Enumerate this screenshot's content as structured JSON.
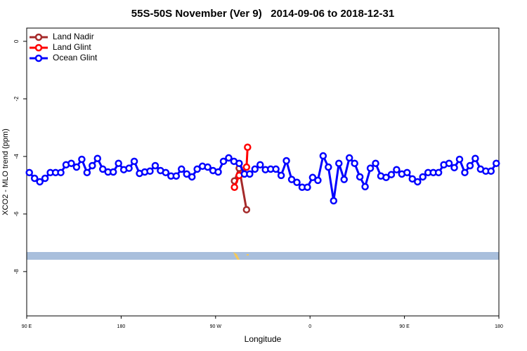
{
  "chart_data": {
    "type": "line",
    "title": "55S-50S November (Ver 9)   2014-09-06 to 2018-12-31",
    "x_label": "Longitude",
    "y_label": "XCO2 - MLO trend (ppm)",
    "xlim": [
      90,
      540
    ],
    "ylim": [
      -9.54,
      0.46
    ],
    "xticks": [
      {
        "value": 90,
        "label": "90 E"
      },
      {
        "value": 180,
        "label": "180"
      },
      {
        "value": 270,
        "label": "90 W"
      },
      {
        "value": 360,
        "label": "0"
      },
      {
        "value": 450,
        "label": "90 E"
      },
      {
        "value": 540,
        "label": "180"
      }
    ],
    "yticks": [
      0,
      -2,
      -4,
      -6,
      -8
    ],
    "legend": "top-left",
    "series": [
      {
        "name": "Land Nadir",
        "color": "#a52a2a",
        "x": [
          288,
          292.5,
          299.5
        ],
        "values": [
          -4.85,
          -4.41,
          -5.85
        ]
      },
      {
        "name": "Land Glint",
        "color": "#ff0000",
        "x": [
          288,
          292.5,
          299.5,
          300.5
        ],
        "values": [
          -5.07,
          -4.66,
          -4.37,
          -3.68
        ]
      },
      {
        "name": "Ocean Glint",
        "color": "#0000ff",
        "x": [
          92.5,
          97.5,
          102.5,
          107.5,
          112.5,
          117.5,
          122.5,
          127.5,
          132.5,
          137.5,
          142.5,
          147.5,
          152.5,
          157.5,
          162.5,
          167.5,
          172.5,
          177.5,
          182.5,
          187.5,
          192.5,
          197.5,
          202.5,
          207.5,
          212.5,
          217.5,
          222.5,
          227.5,
          232.5,
          237.5,
          242.5,
          247.5,
          252.5,
          257.5,
          262.5,
          267.5,
          272.5,
          277.5,
          282.5,
          287.5,
          292.5,
          297.5,
          302.5,
          307.5,
          312.5,
          317.5,
          322.5,
          327.5,
          332.5,
          337.5,
          342.5,
          347.5,
          352.5,
          357.5,
          362.5,
          367.5,
          372.5,
          377.5,
          382.5,
          387.5,
          392.5,
          397.5,
          402.5,
          407.5,
          412.5,
          417.5,
          422.5,
          427.5,
          432.5,
          437.5,
          442.5,
          447.5,
          452.5,
          457.5,
          462.5,
          467.5,
          472.5,
          477.5,
          482.5,
          487.5,
          492.5,
          497.5,
          502.5,
          507.5,
          512.5,
          517.5,
          522.5,
          527.5,
          532.5,
          537.5
        ],
        "values": [
          -4.56,
          -4.76,
          -4.88,
          -4.76,
          -4.56,
          -4.56,
          -4.56,
          -4.29,
          -4.24,
          -4.37,
          -4.1,
          -4.56,
          -4.32,
          -4.07,
          -4.44,
          -4.54,
          -4.54,
          -4.24,
          -4.46,
          -4.41,
          -4.17,
          -4.59,
          -4.54,
          -4.51,
          -4.32,
          -4.49,
          -4.56,
          -4.68,
          -4.68,
          -4.44,
          -4.61,
          -4.71,
          -4.44,
          -4.34,
          -4.37,
          -4.49,
          -4.54,
          -4.17,
          -4.05,
          -4.17,
          -4.24,
          -4.61,
          -4.61,
          -4.44,
          -4.29,
          -4.46,
          -4.44,
          -4.44,
          -4.66,
          -4.15,
          -4.8,
          -4.9,
          -5.07,
          -5.07,
          -4.73,
          -4.83,
          -3.98,
          -4.37,
          -5.54,
          -4.24,
          -4.8,
          -4.05,
          -4.24,
          -4.71,
          -5.05,
          -4.41,
          -4.24,
          -4.68,
          -4.73,
          -4.63,
          -4.46,
          -4.61,
          -4.56,
          -4.78,
          -4.88,
          -4.71,
          -4.56,
          -4.56,
          -4.56,
          -4.29,
          -4.24,
          -4.39,
          -4.1,
          -4.56,
          -4.32,
          -4.07,
          -4.44,
          -4.51,
          -4.51,
          -4.24
        ]
      }
    ]
  }
}
